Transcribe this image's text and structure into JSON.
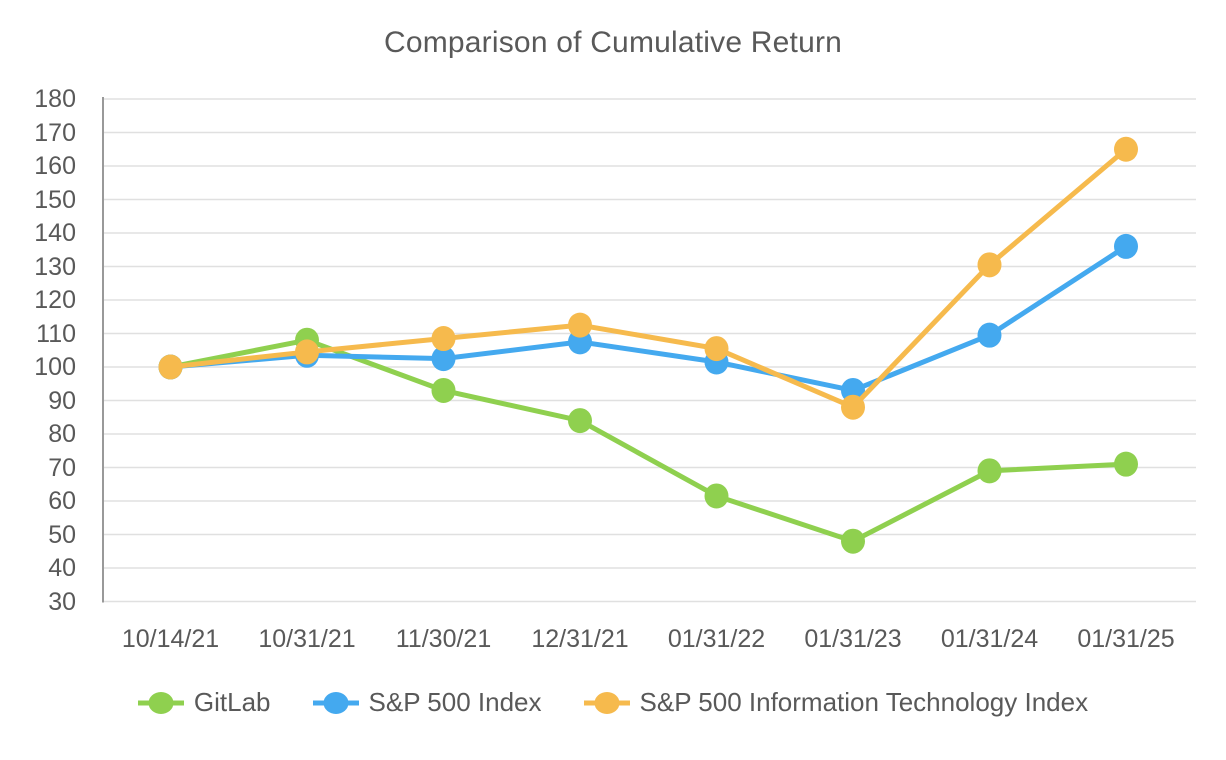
{
  "title": "Comparison of Cumulative Return",
  "chart_data": {
    "type": "line",
    "title": "Comparison of Cumulative Return",
    "categories": [
      "10/14/21",
      "10/31/21",
      "11/30/21",
      "12/31/21",
      "01/31/22",
      "01/31/23",
      "01/31/24",
      "01/31/25"
    ],
    "series": [
      {
        "name": "GitLab",
        "color": "#8fd04f",
        "values": [
          100,
          108,
          93,
          84,
          61.5,
          48,
          69,
          71
        ]
      },
      {
        "name": "S&P 500 Index",
        "color": "#44a9ef",
        "values": [
          100,
          103.5,
          102.5,
          107.5,
          101.5,
          93,
          109.5,
          136
        ]
      },
      {
        "name": "S&P 500 Information Technology Index",
        "color": "#f6ba4d",
        "values": [
          100,
          104.5,
          108.5,
          112.5,
          105.5,
          88,
          130.5,
          165
        ]
      }
    ],
    "ylabel": "",
    "xlabel": "",
    "ylim": [
      30,
      180
    ],
    "y_ticks": [
      30,
      40,
      50,
      60,
      70,
      80,
      90,
      100,
      110,
      120,
      130,
      140,
      150,
      160,
      170,
      180
    ],
    "grid": true,
    "legend_position": "bottom",
    "axis_color": "#999999",
    "gridline_color": "#e0e0e0",
    "text_color": "#595959"
  }
}
